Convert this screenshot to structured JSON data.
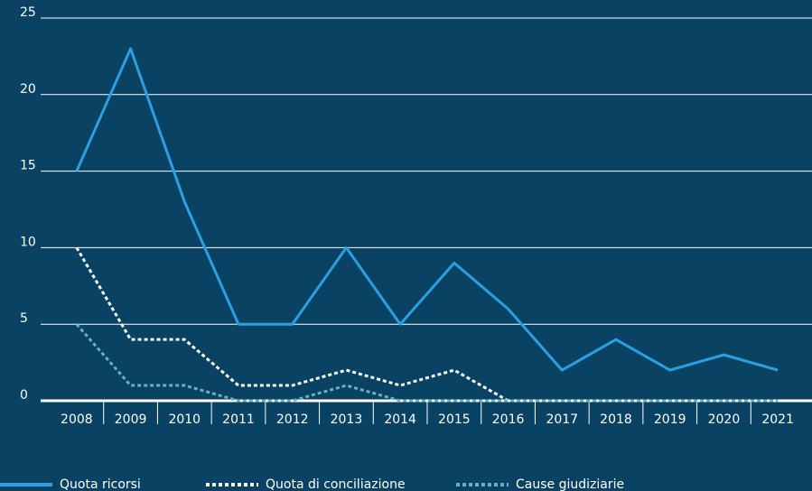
{
  "chart_data": {
    "type": "line",
    "categories": [
      "2008",
      "2009",
      "2010",
      "2011",
      "2012",
      "2013",
      "2014",
      "2015",
      "2016",
      "2017",
      "2018",
      "2019",
      "2020",
      "2021"
    ],
    "series": [
      {
        "name": "Quota ricorsi",
        "color": "#2a9fe2",
        "style": "solid",
        "values": [
          15,
          23,
          13,
          5,
          5,
          10,
          5,
          9,
          6,
          2,
          4,
          2,
          3,
          2
        ]
      },
      {
        "name": "Quota di conciliazione",
        "color": "#ffffff",
        "style": "dotted",
        "values": [
          10,
          4,
          4,
          1,
          1,
          2,
          1,
          2,
          0,
          0,
          0,
          0,
          0,
          0
        ]
      },
      {
        "name": "Cause giudiziarie",
        "color": "#62b4c4",
        "style": "dotted",
        "values": [
          5,
          1,
          1,
          0,
          0,
          1,
          0,
          0,
          0,
          0,
          0,
          0,
          0,
          0
        ]
      }
    ],
    "ylim": [
      0,
      25
    ],
    "yticks": [
      0,
      5,
      10,
      15,
      20,
      25
    ],
    "grid": true
  }
}
